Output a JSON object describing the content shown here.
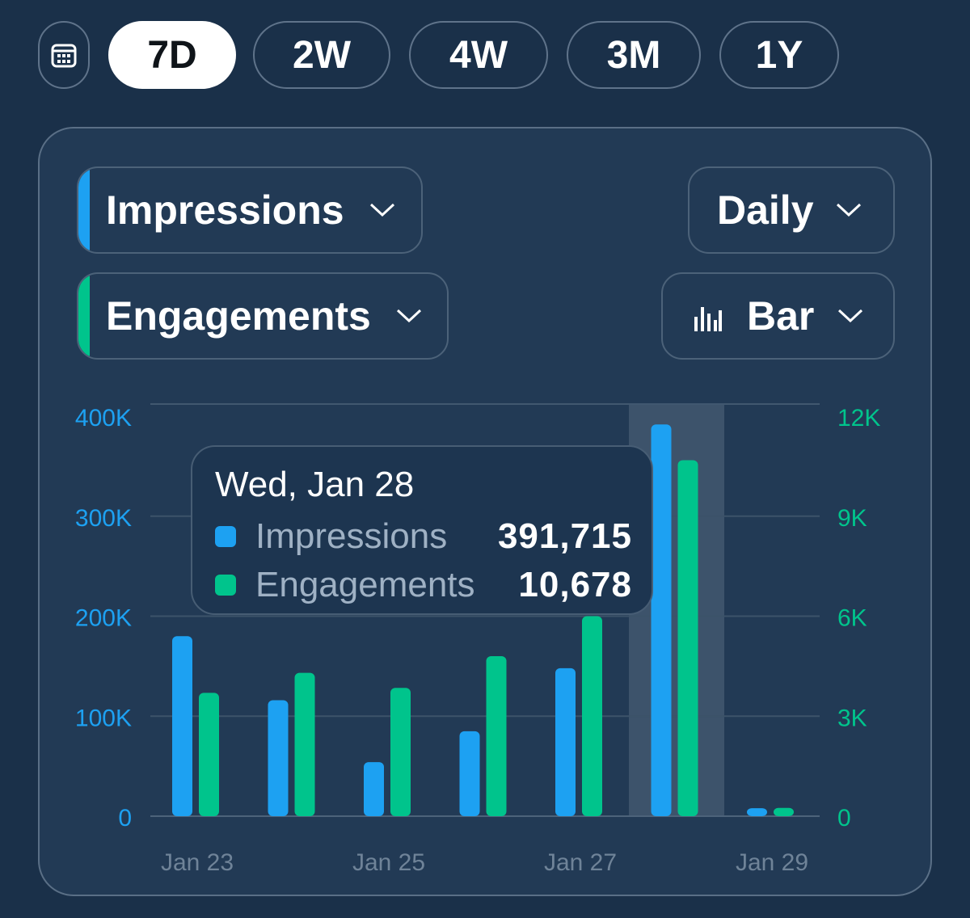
{
  "range_selector": {
    "calendar_icon": "calendar-icon",
    "options": [
      "7D",
      "2W",
      "4W",
      "3M",
      "1Y"
    ],
    "active": "7D"
  },
  "controls": {
    "metric_primary": {
      "label": "Impressions",
      "color": "#1da1f2"
    },
    "metric_secondary": {
      "label": "Engagements",
      "color": "#00c48c"
    },
    "interval": {
      "label": "Daily"
    },
    "chart_type": {
      "label": "Bar",
      "icon": "bar-chart-icon"
    }
  },
  "tooltip": {
    "date": "Wed, Jan 28",
    "rows": [
      {
        "name": "Impressions",
        "value": "391,715",
        "color": "#1da1f2"
      },
      {
        "name": "Engagements",
        "value": "10,678",
        "color": "#00c48c"
      }
    ]
  },
  "chart_data": {
    "type": "bar",
    "title": "",
    "categories": [
      "Jan 23",
      "Jan 24",
      "Jan 25",
      "Jan 26",
      "Jan 27",
      "Jan 28",
      "Jan 29"
    ],
    "x_tick_labels": [
      "Jan 23",
      "Jan 25",
      "Jan 27",
      "Jan 29"
    ],
    "highlighted_category": "Jan 28",
    "series": [
      {
        "name": "Impressions",
        "axis": "left",
        "color": "#1da1f2",
        "values": [
          180000,
          116000,
          54000,
          85000,
          148000,
          391715,
          8000
        ]
      },
      {
        "name": "Engagements",
        "axis": "right",
        "color": "#00c48c",
        "values": [
          3700,
          4300,
          3850,
          4800,
          6000,
          10678,
          250
        ]
      }
    ],
    "y_left": {
      "ticks": [
        0,
        100000,
        200000,
        300000,
        400000
      ],
      "tick_labels": [
        "0",
        "100K",
        "200K",
        "300K",
        "400K"
      ],
      "range": [
        0,
        400000
      ],
      "color": "#1da1f2"
    },
    "y_right": {
      "ticks": [
        0,
        3000,
        6000,
        9000,
        12000
      ],
      "tick_labels": [
        "0",
        "3K",
        "6K",
        "9K",
        "12K"
      ],
      "range": [
        0,
        12000
      ],
      "color": "#00c48c"
    },
    "grid": true,
    "legend": "none"
  }
}
